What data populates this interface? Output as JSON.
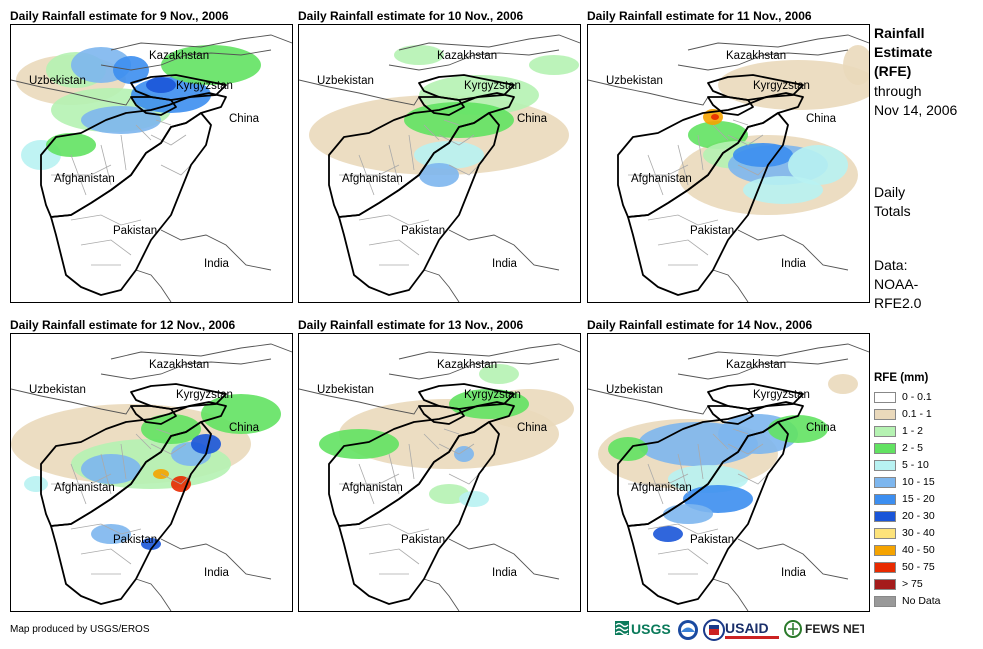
{
  "panels": [
    {
      "title": "Daily Rainfall estimate for 9 Nov., 2006"
    },
    {
      "title": "Daily Rainfall estimate for 10 Nov., 2006"
    },
    {
      "title": "Daily Rainfall estimate for 11 Nov., 2006"
    },
    {
      "title": "Daily Rainfall estimate for 12 Nov., 2006"
    },
    {
      "title": "Daily Rainfall estimate for 13 Nov., 2006"
    },
    {
      "title": "Daily Rainfall estimate for 14 Nov., 2006"
    }
  ],
  "map_labels": {
    "kazakhstan": "Kazakhstan",
    "uzbekistan": "Uzbekistan",
    "kyrgyzstan": "Kyrgyzstan",
    "china": "China",
    "afghanistan": "Afghanistan",
    "pakistan": "Pakistan",
    "india": "India"
  },
  "side": {
    "title_1": "Rainfall",
    "title_2": "Estimate",
    "title_3": "(RFE)",
    "through": "through",
    "date": "Nov 14, 2006",
    "daily": "Daily",
    "totals": "Totals",
    "data": "Data:",
    "source_1": "NOAA-",
    "source_2": "RFE2.0"
  },
  "legend": {
    "title": "RFE (mm)",
    "items": [
      {
        "label": "0 - 0.1",
        "color": "#ffffff"
      },
      {
        "label": "0.1 - 1",
        "color": "#ead9bb"
      },
      {
        "label": "1 - 2",
        "color": "#b5f2b2"
      },
      {
        "label": "2 - 5",
        "color": "#62e262"
      },
      {
        "label": "5 - 10",
        "color": "#b8f2f2"
      },
      {
        "label": "10 - 15",
        "color": "#7db6ee"
      },
      {
        "label": "15 - 20",
        "color": "#3c8ef0"
      },
      {
        "label": "20 - 30",
        "color": "#1a55d8"
      },
      {
        "label": "30 - 40",
        "color": "#fde37a"
      },
      {
        "label": "40 - 50",
        "color": "#f5a300"
      },
      {
        "label": "50 - 75",
        "color": "#e82a00"
      },
      {
        "label": "> 75",
        "color": "#a51c1c"
      },
      {
        "label": "No Data",
        "color": "#999999"
      }
    ]
  },
  "credit": "Map produced by USGS/EROS",
  "logos": {
    "usgs": "USGS",
    "usaid": "USAID",
    "fews": "FEWS NET"
  },
  "colors": {
    "country_border": "#000000",
    "province_border": "#aaaaaa"
  }
}
